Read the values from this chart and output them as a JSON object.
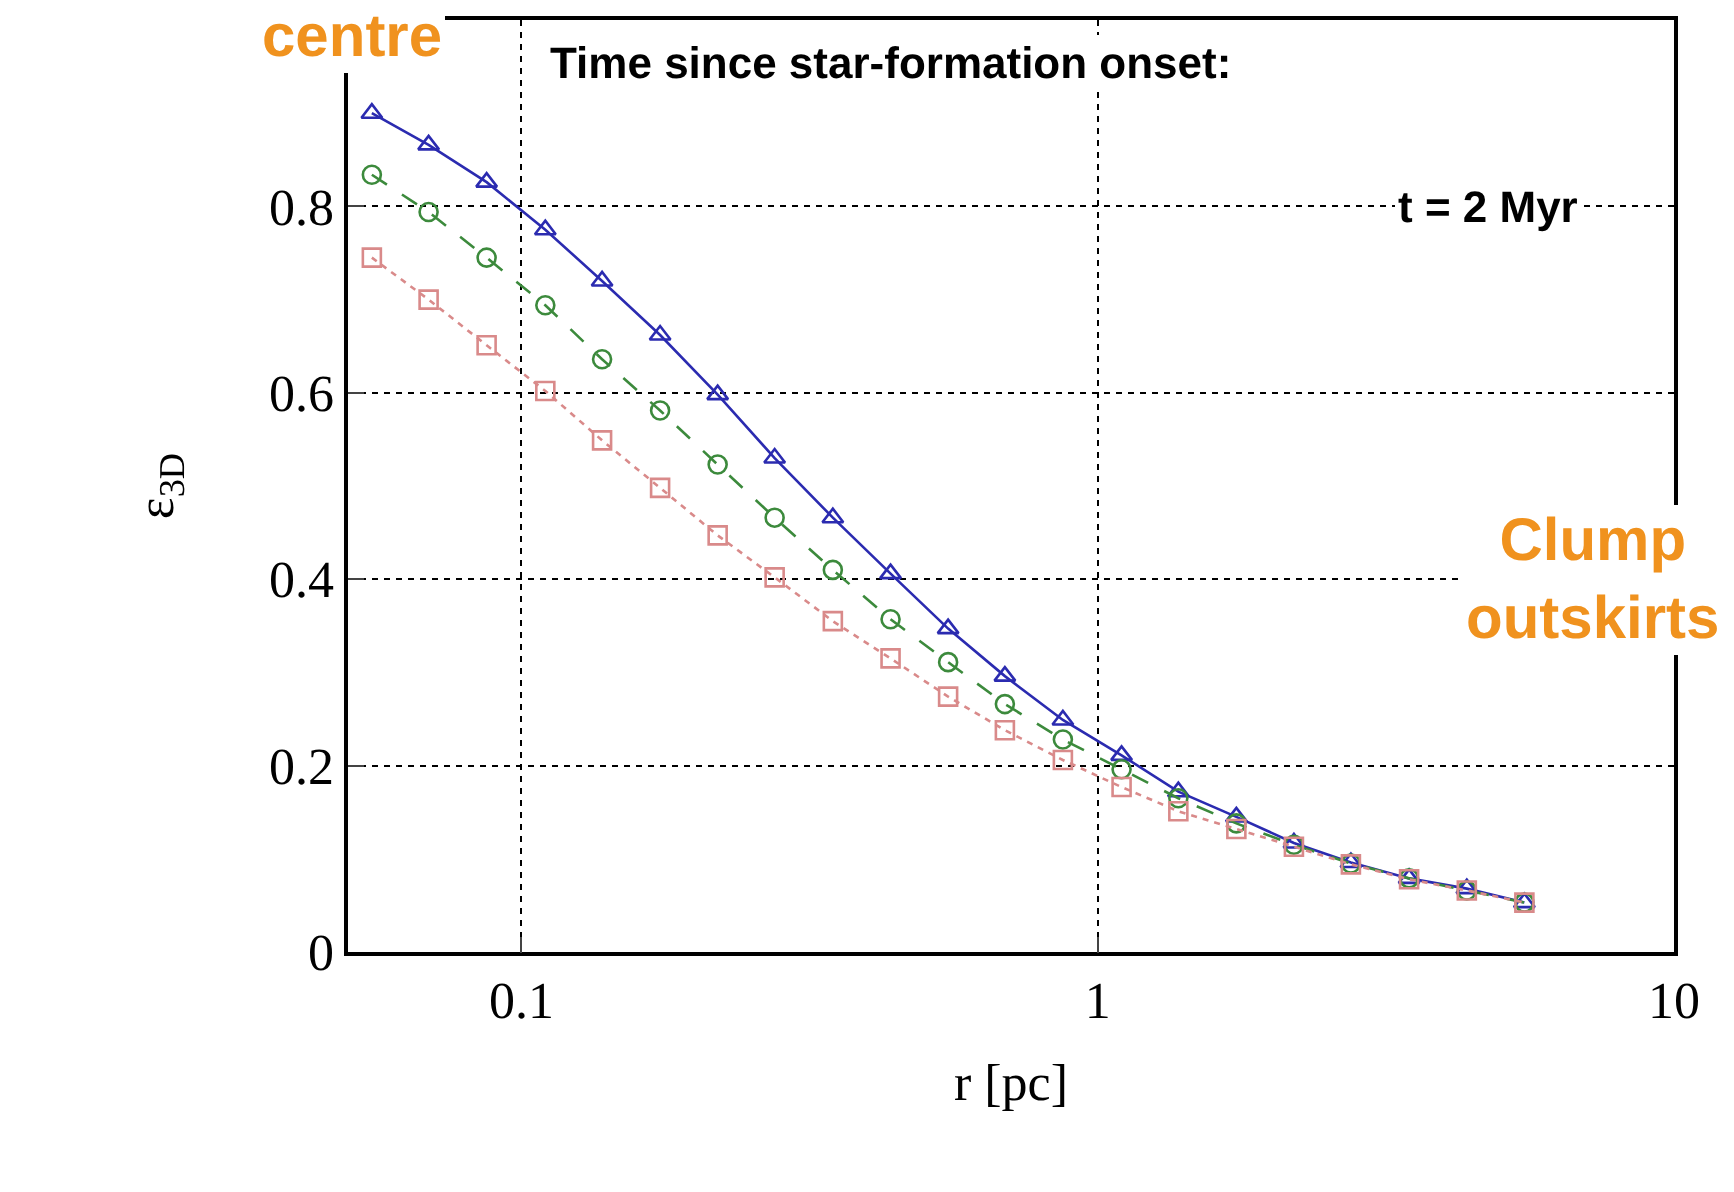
{
  "chart_data": {
    "type": "line",
    "xlabel": "r [pc]",
    "ylabel": "ε$_{3D}$",
    "x": [
      0.055,
      0.069,
      0.087,
      0.11,
      0.138,
      0.174,
      0.219,
      0.275,
      0.347,
      0.437,
      0.55,
      0.69,
      0.87,
      1.1,
      1.38,
      1.74,
      2.19,
      2.75,
      3.47,
      4.37,
      5.5
    ],
    "series": [
      {
        "color": "#2b2bb0",
        "marker": "triangle",
        "line_style": "solid",
        "values": [
          0.9,
          0.866,
          0.826,
          0.775,
          0.72,
          0.662,
          0.598,
          0.53,
          0.466,
          0.406,
          0.347,
          0.296,
          0.249,
          0.211,
          0.172,
          0.145,
          0.117,
          0.096,
          0.079,
          0.068,
          0.053
        ]
      },
      {
        "color": "#3c8a3c",
        "marker": "circle",
        "line_style": "dashed",
        "values": [
          0.834,
          0.794,
          0.745,
          0.694,
          0.636,
          0.581,
          0.523,
          0.466,
          0.41,
          0.357,
          0.311,
          0.266,
          0.228,
          0.196,
          0.165,
          0.138,
          0.115,
          0.095,
          0.079,
          0.066,
          0.053
        ]
      },
      {
        "color": "#d98a8a",
        "marker": "square",
        "line_style": "dotted",
        "values": [
          0.745,
          0.7,
          0.651,
          0.602,
          0.549,
          0.498,
          0.447,
          0.402,
          0.355,
          0.315,
          0.274,
          0.238,
          0.206,
          0.177,
          0.151,
          0.132,
          0.113,
          0.094,
          0.078,
          0.066,
          0.053
        ]
      }
    ],
    "log": "x",
    "xlim": [
      0.05,
      10
    ],
    "xticks": [
      0.1,
      1,
      10
    ],
    "ylim": [
      0,
      1
    ],
    "yticks": [
      0,
      0.2,
      0.4,
      0.6,
      0.8
    ],
    "grid": true,
    "annotations": [
      "centre",
      "Time since star-formation onset:",
      "t = 2 Myr",
      "Clump outskirts"
    ]
  }
}
